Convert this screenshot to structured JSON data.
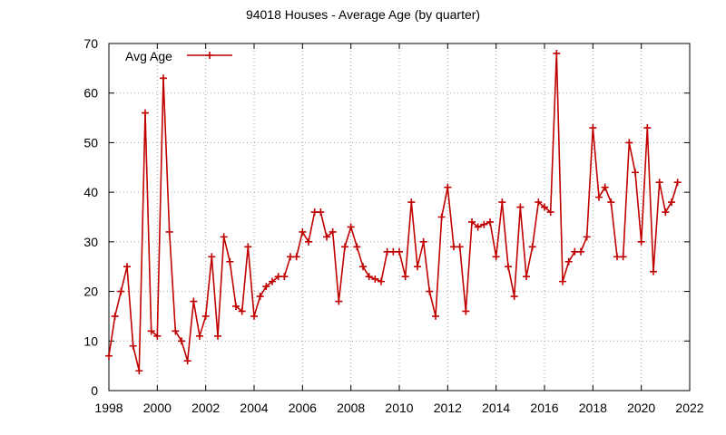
{
  "chart_data": {
    "type": "line",
    "title": "94018 Houses - Average Age (by quarter)",
    "xlabel": "",
    "ylabel": "",
    "xlim": [
      1998,
      2022
    ],
    "ylim": [
      0,
      70
    ],
    "x_ticks": [
      1998,
      2000,
      2002,
      2004,
      2006,
      2008,
      2010,
      2012,
      2014,
      2016,
      2018,
      2020,
      2022
    ],
    "y_ticks": [
      0,
      10,
      20,
      30,
      40,
      50,
      60,
      70
    ],
    "grid": true,
    "legend_position": "top-left",
    "series": [
      {
        "name": "Avg Age",
        "color": "#c00000",
        "marker": "plus",
        "x": [
          1998.0,
          1998.25,
          1998.5,
          1998.75,
          1999.0,
          1999.25,
          1999.5,
          1999.75,
          2000.0,
          2000.25,
          2000.5,
          2000.75,
          2001.0,
          2001.25,
          2001.5,
          2001.75,
          2002.0,
          2002.25,
          2002.5,
          2002.75,
          2003.0,
          2003.25,
          2003.5,
          2003.75,
          2004.0,
          2004.25,
          2004.5,
          2004.75,
          2005.0,
          2005.25,
          2005.5,
          2005.75,
          2006.0,
          2006.25,
          2006.5,
          2006.75,
          2007.0,
          2007.25,
          2007.5,
          2007.75,
          2008.0,
          2008.25,
          2008.5,
          2008.75,
          2009.0,
          2009.25,
          2009.5,
          2009.75,
          2010.0,
          2010.25,
          2010.5,
          2010.75,
          2011.0,
          2011.25,
          2011.5,
          2011.75,
          2012.0,
          2012.25,
          2012.5,
          2012.75,
          2013.0,
          2013.25,
          2013.5,
          2013.75,
          2014.0,
          2014.25,
          2014.5,
          2014.75,
          2015.0,
          2015.25,
          2015.5,
          2015.75,
          2016.0,
          2016.25,
          2016.5,
          2016.75,
          2017.0,
          2017.25,
          2017.5,
          2017.75,
          2018.0,
          2018.25,
          2018.5,
          2018.75,
          2019.0,
          2019.25,
          2019.5,
          2019.75,
          2020.0,
          2020.25,
          2020.5,
          2020.75,
          2021.0,
          2021.25,
          2021.5
        ],
        "y": [
          7,
          15,
          20,
          25,
          9,
          4,
          56,
          12,
          11,
          63,
          32,
          12,
          10,
          6,
          18,
          11,
          15,
          27,
          11,
          31,
          26,
          17,
          16,
          29,
          15,
          19,
          21,
          22,
          23,
          23,
          27,
          27,
          32,
          30,
          36,
          36,
          31,
          32,
          18,
          29,
          33,
          29,
          25,
          23,
          22.5,
          22,
          28,
          28,
          28,
          23,
          38,
          25,
          30,
          20,
          15,
          35,
          41,
          29,
          29,
          16,
          34,
          33,
          33.5,
          34,
          27,
          38,
          25,
          19,
          37,
          23,
          29,
          38,
          37,
          36,
          68,
          22,
          26,
          28,
          28,
          31,
          53,
          39,
          41,
          38,
          27,
          27,
          50,
          44,
          30,
          53,
          24,
          42,
          36,
          38,
          42
        ]
      }
    ]
  }
}
